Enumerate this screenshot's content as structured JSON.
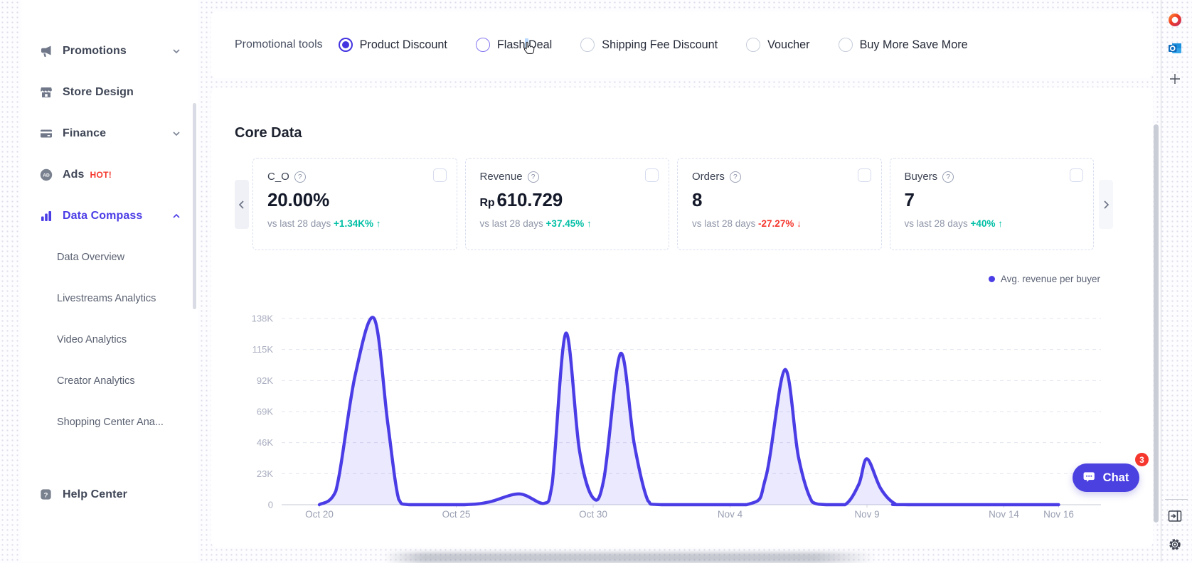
{
  "colors": {
    "accent": "#4b3de6",
    "positive": "#00bfa5",
    "negative": "#f5372e",
    "icon_slate": "#6f7789"
  },
  "icons": {
    "question_glyph": "?",
    "ad_glyph": "AD",
    "help_glyph": "?"
  },
  "sidebar": {
    "items": [
      {
        "label": "Promotions",
        "icon": "megaphone-icon",
        "chevron": "down",
        "active": false,
        "badge": ""
      },
      {
        "label": "Store Design",
        "icon": "storefront-icon",
        "chevron": "",
        "active": false,
        "badge": ""
      },
      {
        "label": "Finance",
        "icon": "credit-card-icon",
        "chevron": "down",
        "active": false,
        "badge": ""
      },
      {
        "label": "Ads",
        "icon": "ad-circle-icon",
        "chevron": "",
        "active": false,
        "badge": "HOT!"
      },
      {
        "label": "Data Compass",
        "icon": "bar-chart-icon",
        "chevron": "up",
        "active": true,
        "badge": ""
      }
    ],
    "subitems": [
      {
        "label": "Data Overview"
      },
      {
        "label": "Livestreams Analytics"
      },
      {
        "label": "Video Analytics"
      },
      {
        "label": "Creator Analytics"
      },
      {
        "label": "Shopping Center Ana..."
      }
    ],
    "help_center": {
      "label": "Help Center",
      "icon": "question-square-icon"
    }
  },
  "promo_bar": {
    "label": "Promotional tools",
    "options": [
      {
        "label": "Product Discount",
        "state": "selected",
        "selection_highlight": false
      },
      {
        "label": "Flash Deal",
        "state": "hover",
        "selection_highlight": true
      },
      {
        "label": "Shipping Fee Discount",
        "state": "default",
        "selection_highlight": false
      },
      {
        "label": "Voucher",
        "state": "default",
        "selection_highlight": false
      },
      {
        "label": "Buy More Save More",
        "state": "default",
        "selection_highlight": false
      }
    ]
  },
  "core_data": {
    "title": "Core Data",
    "compare_label": "vs last 28 days",
    "cards": [
      {
        "name": "C_O",
        "prefix": "",
        "value": "20.00%",
        "delta": "+1.34K%",
        "direction": "up"
      },
      {
        "name": "Revenue",
        "prefix": "Rp",
        "value": "610.729",
        "delta": "+37.45%",
        "direction": "up"
      },
      {
        "name": "Orders",
        "prefix": "",
        "value": "8",
        "delta": "-27.27%",
        "direction": "down"
      },
      {
        "name": "Buyers",
        "prefix": "",
        "value": "7",
        "delta": "+40%",
        "direction": "up"
      }
    ]
  },
  "chart_data": {
    "type": "area",
    "title": "",
    "xlabel": "",
    "ylabel": "",
    "grid": "dashed-horizontal",
    "legend_position": "top-right",
    "legend": [
      {
        "label": "Avg. revenue per buyer",
        "color": "#4b3de6"
      }
    ],
    "y_unit": "Rp thousands",
    "ylim": [
      0,
      138000
    ],
    "y_ticks": [
      {
        "label": "138K",
        "value": 138
      },
      {
        "label": "115K",
        "value": 115
      },
      {
        "label": "92K",
        "value": 92
      },
      {
        "label": "69K",
        "value": 69
      },
      {
        "label": "46K",
        "value": 46
      },
      {
        "label": "23K",
        "value": 23
      },
      {
        "label": "0",
        "value": 0
      }
    ],
    "x_ticks": [
      {
        "label": "Oct 20",
        "day": 1
      },
      {
        "label": "Oct 25",
        "day": 6
      },
      {
        "label": "Oct 30",
        "day": 11
      },
      {
        "label": "Nov 4",
        "day": 16
      },
      {
        "label": "Nov 9",
        "day": 21
      },
      {
        "label": "Nov 14",
        "day": 26
      },
      {
        "label": "Nov 16",
        "day": 28
      }
    ],
    "series": [
      {
        "name": "Avg. revenue per buyer",
        "color": "#4b3de6",
        "fill": "rgba(107,97,246,0.14)",
        "points_day_valueK": [
          [
            1,
            0
          ],
          [
            1.6,
            10
          ],
          [
            2.3,
            95
          ],
          [
            3,
            138
          ],
          [
            3.5,
            60
          ],
          [
            3.9,
            4
          ],
          [
            4.3,
            0
          ],
          [
            6.3,
            0
          ],
          [
            7.2,
            2
          ],
          [
            8.3,
            8
          ],
          [
            9.2,
            1
          ],
          [
            9.5,
            15
          ],
          [
            10,
            127
          ],
          [
            10.5,
            40
          ],
          [
            11,
            5
          ],
          [
            11.4,
            20
          ],
          [
            12,
            112
          ],
          [
            12.5,
            45
          ],
          [
            13,
            3
          ],
          [
            13.5,
            0
          ],
          [
            16.6,
            0
          ],
          [
            17.3,
            20
          ],
          [
            18,
            100
          ],
          [
            18.5,
            35
          ],
          [
            19,
            2
          ],
          [
            19.5,
            0
          ],
          [
            20.2,
            0
          ],
          [
            20.7,
            15
          ],
          [
            21,
            34
          ],
          [
            21.5,
            12
          ],
          [
            22,
            1
          ],
          [
            22.5,
            0
          ],
          [
            28,
            0
          ]
        ]
      }
    ]
  },
  "chat_button": {
    "label": "Chat",
    "badge": "3"
  },
  "edge_panel": {
    "icons": [
      "office-icon",
      "outlook-icon",
      "add-icon",
      "open-sidebar-icon",
      "settings-icon"
    ]
  }
}
